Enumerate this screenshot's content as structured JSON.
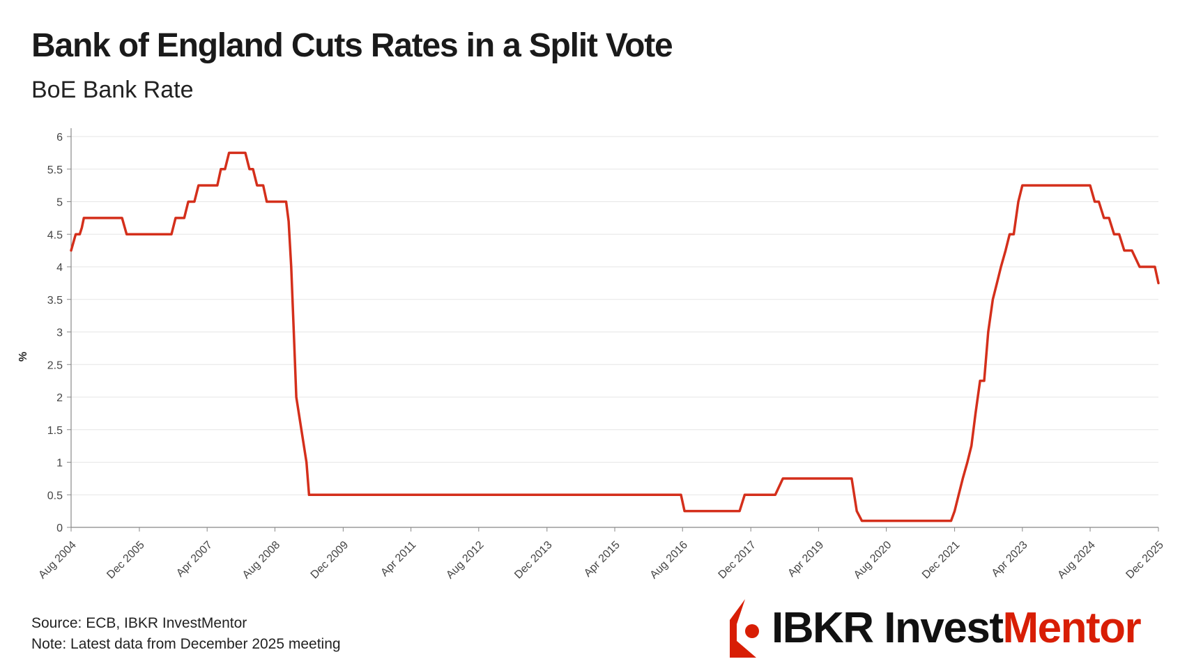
{
  "title": "Bank of England Cuts Rates in a Split Vote",
  "subtitle": "BoE Bank Rate",
  "source": "Source: ECB, IBKR InvestMentor",
  "note": "Note: Latest data from December 2025 meeting",
  "logo": {
    "part1": "IBKR Invest",
    "part2": "Mentor"
  },
  "colors": {
    "line": "#d42f1b",
    "grid": "#e6e6e6",
    "axis": "#888888",
    "brand_red": "#d81e05"
  },
  "chart_data": {
    "type": "line",
    "title": "BoE Bank Rate",
    "xlabel": "",
    "ylabel": "%",
    "ylim": [
      0,
      6
    ],
    "xlim": [
      2004.58,
      2025.92
    ],
    "yticks": [
      0,
      0.5,
      1,
      1.5,
      2,
      2.5,
      3,
      3.5,
      4,
      4.5,
      5,
      5.5,
      6
    ],
    "ytick_labels": [
      "0",
      "0.5",
      "1",
      "1.5",
      "2",
      "2.5",
      "3",
      "3.5",
      "4",
      "4.5",
      "5",
      "5.5",
      "6"
    ],
    "xticks": [
      {
        "label": "Aug 2004",
        "x": 2004.58
      },
      {
        "label": "Dec 2005",
        "x": 2005.92
      },
      {
        "label": "Apr 2007",
        "x": 2007.25
      },
      {
        "label": "Aug 2008",
        "x": 2008.58
      },
      {
        "label": "Dec 2009",
        "x": 2009.92
      },
      {
        "label": "Apr 2011",
        "x": 2011.25
      },
      {
        "label": "Aug 2012",
        "x": 2012.58
      },
      {
        "label": "Dec 2013",
        "x": 2013.92
      },
      {
        "label": "Apr 2015",
        "x": 2015.25
      },
      {
        "label": "Aug 2016",
        "x": 2016.58
      },
      {
        "label": "Dec 2017",
        "x": 2017.92
      },
      {
        "label": "Apr 2019",
        "x": 2019.25
      },
      {
        "label": "Aug 2020",
        "x": 2020.58
      },
      {
        "label": "Dec 2021",
        "x": 2021.92
      },
      {
        "label": "Apr 2023",
        "x": 2023.25
      },
      {
        "label": "Aug 2024",
        "x": 2024.58
      },
      {
        "label": "Dec 2025",
        "x": 2025.92
      }
    ],
    "series": [
      {
        "name": "BoE Bank Rate",
        "x": [
          2004.58,
          2004.67,
          2004.75,
          2004.79,
          2004.83,
          2005.58,
          2005.67,
          2006.55,
          2006.63,
          2006.8,
          2006.88,
          2007.0,
          2007.08,
          2007.45,
          2007.52,
          2007.6,
          2007.68,
          2008.0,
          2008.08,
          2008.15,
          2008.23,
          2008.35,
          2008.42,
          2008.8,
          2008.85,
          2008.9,
          2008.95,
          2009.0,
          2009.1,
          2009.2,
          2009.25,
          2016.55,
          2016.62,
          2017.7,
          2017.8,
          2018.4,
          2018.55,
          2019.9,
          2020.0,
          2020.1,
          2020.25,
          2021.85,
          2021.92,
          2022.0,
          2022.08,
          2022.17,
          2022.25,
          2022.33,
          2022.42,
          2022.5,
          2022.58,
          2022.67,
          2022.75,
          2022.83,
          2022.92,
          2023.0,
          2023.08,
          2023.17,
          2023.25,
          2023.33,
          2023.42,
          2023.5,
          2023.58,
          2023.67,
          2024.58,
          2024.67,
          2024.75,
          2024.85,
          2024.95,
          2025.05,
          2025.15,
          2025.25,
          2025.4,
          2025.55,
          2025.65,
          2025.85,
          2025.92
        ],
        "values": [
          4.25,
          4.5,
          4.5,
          4.6,
          4.75,
          4.75,
          4.5,
          4.5,
          4.75,
          4.75,
          5.0,
          5.0,
          5.25,
          5.25,
          5.5,
          5.5,
          5.75,
          5.75,
          5.5,
          5.5,
          5.25,
          5.25,
          5.0,
          5.0,
          4.7,
          4.0,
          3.0,
          2.0,
          1.5,
          1.0,
          0.5,
          0.5,
          0.25,
          0.25,
          0.5,
          0.5,
          0.75,
          0.75,
          0.25,
          0.1,
          0.1,
          0.1,
          0.25,
          0.5,
          0.75,
          1.0,
          1.25,
          1.75,
          2.25,
          2.25,
          3.0,
          3.5,
          3.75,
          4.0,
          4.25,
          4.5,
          4.5,
          5.0,
          5.25,
          5.25,
          5.25,
          5.25,
          5.25,
          5.25,
          5.25,
          5.0,
          5.0,
          4.75,
          4.75,
          4.5,
          4.5,
          4.25,
          4.25,
          4.0,
          4.0,
          4.0,
          3.75
        ]
      }
    ]
  }
}
